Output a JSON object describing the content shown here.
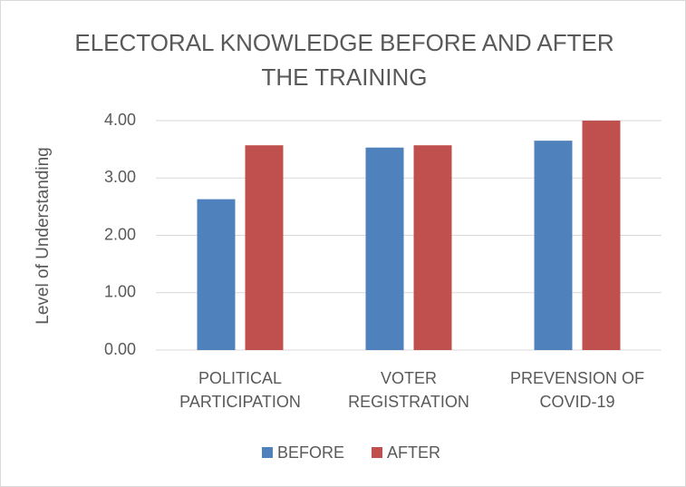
{
  "chart_data": {
    "type": "bar",
    "title": "ELECTORAL KNOWLEDGE BEFORE AND AFTER THE TRAINING",
    "y_label": "Level of Understanding",
    "categories": [
      "POLITICAL PARTICIPATION",
      "VOTER REGISTRATION",
      "PREVENSION OF COVID-19"
    ],
    "series": [
      {
        "name": "BEFORE",
        "color": "#4f81bd",
        "values": [
          2.63,
          3.53,
          3.65
        ]
      },
      {
        "name": "AFTER",
        "color": "#c0504d",
        "values": [
          3.57,
          3.57,
          4.0
        ]
      }
    ],
    "ylim": [
      0,
      4
    ],
    "yticks": [
      {
        "value": 0,
        "label": "0.00"
      },
      {
        "value": 1,
        "label": "1.00"
      },
      {
        "value": 2,
        "label": "2.00"
      },
      {
        "value": 3,
        "label": "3.00"
      },
      {
        "value": 4,
        "label": "4.00"
      }
    ],
    "grid": true,
    "legend": "bottom"
  }
}
